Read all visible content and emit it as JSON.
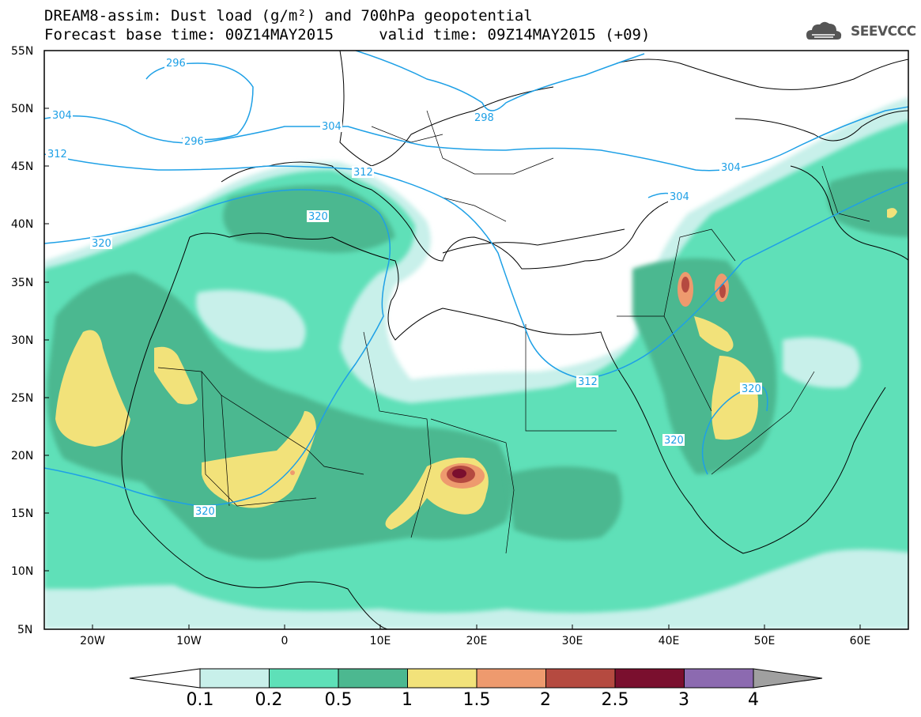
{
  "header": {
    "title_line1": "DREAM8-assim: Dust load (g/m²) and 700hPa geopotential",
    "title_line2": "Forecast base time: 00Z14MAY2015     valid time: 09Z14MAY2015 (+09)",
    "logo_text": "SEEVCCC"
  },
  "axes": {
    "lat_ticks": [
      "55N",
      "50N",
      "45N",
      "40N",
      "35N",
      "30N",
      "25N",
      "20N",
      "15N",
      "10N",
      "5N"
    ],
    "lon_ticks": [
      "20W",
      "10W",
      "0",
      "10E",
      "20E",
      "30E",
      "40E",
      "50E",
      "60E"
    ]
  },
  "contours": {
    "labels": [
      "296",
      "304",
      "296",
      "304",
      "312",
      "312",
      "320",
      "320",
      "298",
      "304",
      "304",
      "312",
      "320",
      "320",
      "320"
    ]
  },
  "colorbar": {
    "labels": [
      "0.1",
      "0.2",
      "0.5",
      "1",
      "1.5",
      "2",
      "2.5",
      "3",
      "4"
    ],
    "colors": [
      "#c8f0ea",
      "#5ee0b8",
      "#4cb890",
      "#f2e27a",
      "#ee9a6e",
      "#b54a40",
      "#7a0f2e",
      "#8c6ab0"
    ]
  },
  "map_colors": {
    "dust_light": "#c8f0ea",
    "dust_low": "#5ee0b8",
    "dust_mid": "#4cb890",
    "dust_high": "#f2e27a",
    "dust_peak1": "#ee9a6e",
    "dust_peak2": "#b54a40",
    "dust_peak3": "#7a0f2e",
    "geopotential": "#1ea0e6"
  }
}
